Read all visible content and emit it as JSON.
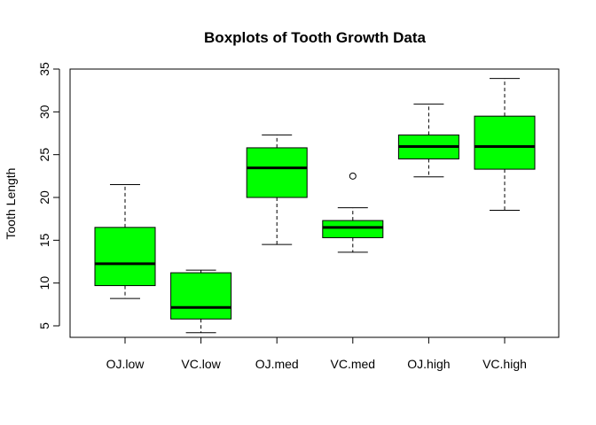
{
  "chart_data": {
    "type": "boxplot",
    "title": "Boxplots of Tooth Growth Data",
    "xlabel": "",
    "ylabel": "Tooth Length",
    "ylim": [
      4,
      35
    ],
    "yticks": [
      5,
      10,
      15,
      20,
      25,
      30,
      35
    ],
    "grid": false,
    "legend": "none",
    "box_color": "#00ff00",
    "categories": [
      "OJ.low",
      "VC.low",
      "OJ.med",
      "VC.med",
      "OJ.high",
      "VC.high"
    ],
    "boxes": [
      {
        "min": 8.2,
        "q1": 9.7,
        "median": 12.25,
        "q3": 16.5,
        "max": 21.5,
        "outliers": []
      },
      {
        "min": 4.2,
        "q1": 5.8,
        "median": 7.15,
        "q3": 11.2,
        "max": 11.5,
        "outliers": []
      },
      {
        "min": 14.5,
        "q1": 20.0,
        "median": 23.45,
        "q3": 25.8,
        "max": 27.3,
        "outliers": []
      },
      {
        "min": 13.6,
        "q1": 15.3,
        "median": 16.5,
        "q3": 17.3,
        "max": 18.8,
        "outliers": [
          22.5
        ]
      },
      {
        "min": 22.4,
        "q1": 24.5,
        "median": 25.95,
        "q3": 27.3,
        "max": 30.9,
        "outliers": []
      },
      {
        "min": 18.5,
        "q1": 23.3,
        "median": 25.95,
        "q3": 29.5,
        "max": 33.9,
        "outliers": []
      }
    ]
  }
}
